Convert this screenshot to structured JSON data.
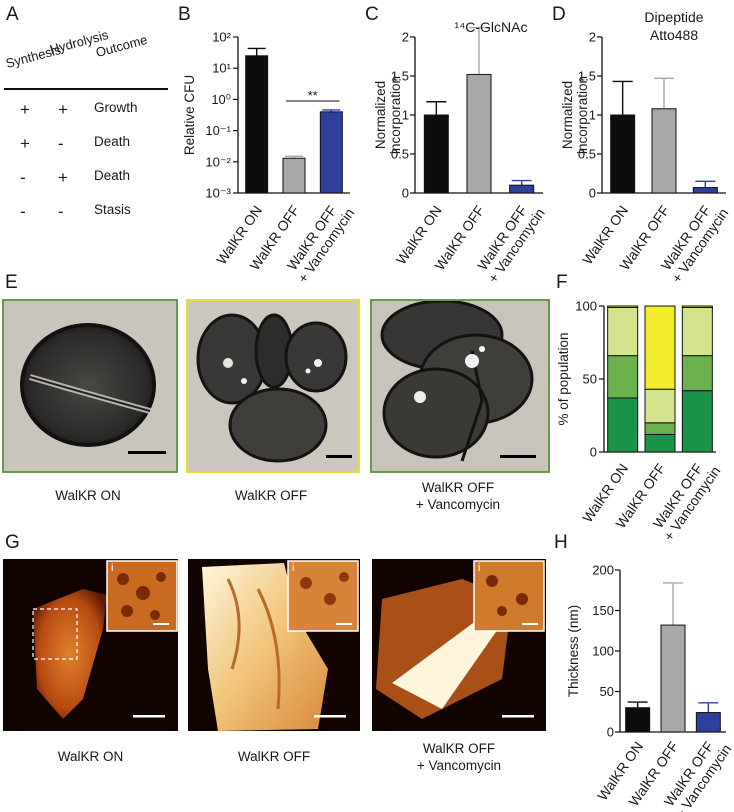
{
  "panel_labels": {
    "A": "A",
    "B": "B",
    "C": "C",
    "D": "D",
    "E": "E",
    "F": "F",
    "G": "G",
    "H": "H"
  },
  "table_a": {
    "headers": [
      "Synthesis",
      "Hydrolysis",
      "Outcome"
    ],
    "rows": [
      {
        "synthesis": "+",
        "hydrolysis": "+",
        "outcome": "Growth"
      },
      {
        "synthesis": "+",
        "hydrolysis": "-",
        "outcome": "Death"
      },
      {
        "synthesis": "-",
        "hydrolysis": "+",
        "outcome": "Death"
      },
      {
        "synthesis": "-",
        "hydrolysis": "-",
        "outcome": "Stasis"
      }
    ]
  },
  "conditions": [
    "WalKR ON",
    "WalKR OFF",
    "WalKR OFF",
    "+ Vancomycin"
  ],
  "colors": {
    "on": "#0d0d0d",
    "off": "#a8a8a8",
    "vanco": "#2e3f9c",
    "frame_on": "#6a9a4e",
    "frame_off": "#e8dc3a",
    "f_dark": "#1a9448",
    "f_mid": "#6ab04c",
    "f_light": "#d4e48c",
    "f_yellow": "#f2ec2a"
  },
  "chart_data": [
    {
      "panel": "B",
      "type": "bar",
      "ylabel": "Relative CFU",
      "yscale": "log",
      "ylim": [
        0.001,
        100
      ],
      "ytick_labels": [
        "10²",
        "10¹",
        "10⁰",
        "10⁻¹",
        "10⁻²",
        "10⁻³"
      ],
      "ytick_values": [
        100,
        10,
        1,
        0.1,
        0.01,
        0.001
      ],
      "categories": [
        "WalKR ON",
        "WalKR OFF",
        "WalKR OFF + Vancomycin"
      ],
      "values": [
        25,
        0.013,
        0.4
      ],
      "errors": [
        18,
        0.002,
        0.06
      ],
      "annotation": "**"
    },
    {
      "panel": "C",
      "type": "bar",
      "title": "¹⁴C-GlcNAc",
      "ylabel": "Normalized incorporation",
      "ylim": [
        0,
        2
      ],
      "yticks": [
        "0",
        "0.5",
        "1",
        "1.5",
        "2"
      ],
      "categories": [
        "WalKR ON",
        "WalKR OFF",
        "WalKR OFF + Vancomycin"
      ],
      "values": [
        1.0,
        1.52,
        0.1
      ],
      "errors": [
        0.17,
        0.6,
        0.06
      ]
    },
    {
      "panel": "D",
      "type": "bar",
      "title": "Dipeptide Atto488",
      "ylabel": "Normalized incorporation",
      "ylim": [
        0,
        2
      ],
      "yticks": [
        "0",
        "0.5",
        "1",
        "1.5",
        "2"
      ],
      "categories": [
        "WalKR ON",
        "WalKR OFF",
        "WalKR OFF + Vancomycin"
      ],
      "values": [
        1.0,
        1.08,
        0.07
      ],
      "errors": [
        0.43,
        0.39,
        0.08
      ]
    },
    {
      "panel": "F",
      "type": "bar",
      "stacked": true,
      "ylabel": "% of population",
      "ylim": [
        0,
        100
      ],
      "yticks": [
        "0",
        "50",
        "100"
      ],
      "categories": [
        "WalKR ON",
        "WalKR OFF",
        "WalKR OFF + Vancomycin"
      ],
      "series": [
        {
          "values": [
            37,
            12,
            42
          ]
        },
        {
          "values": [
            29,
            8,
            24
          ]
        },
        {
          "values": [
            33,
            23,
            33
          ]
        },
        {
          "values": [
            1,
            57,
            1
          ]
        }
      ]
    },
    {
      "panel": "H",
      "type": "bar",
      "ylabel": "Thickness (nm)",
      "ylim": [
        0,
        200
      ],
      "yticks": [
        "0",
        "50",
        "100",
        "150",
        "200"
      ],
      "categories": [
        "WalKR ON",
        "WalKR OFF",
        "WalKR OFF + Vancomycin"
      ],
      "values": [
        30,
        132,
        24
      ],
      "errors": [
        7,
        52,
        12
      ]
    }
  ],
  "inset_label": "i"
}
